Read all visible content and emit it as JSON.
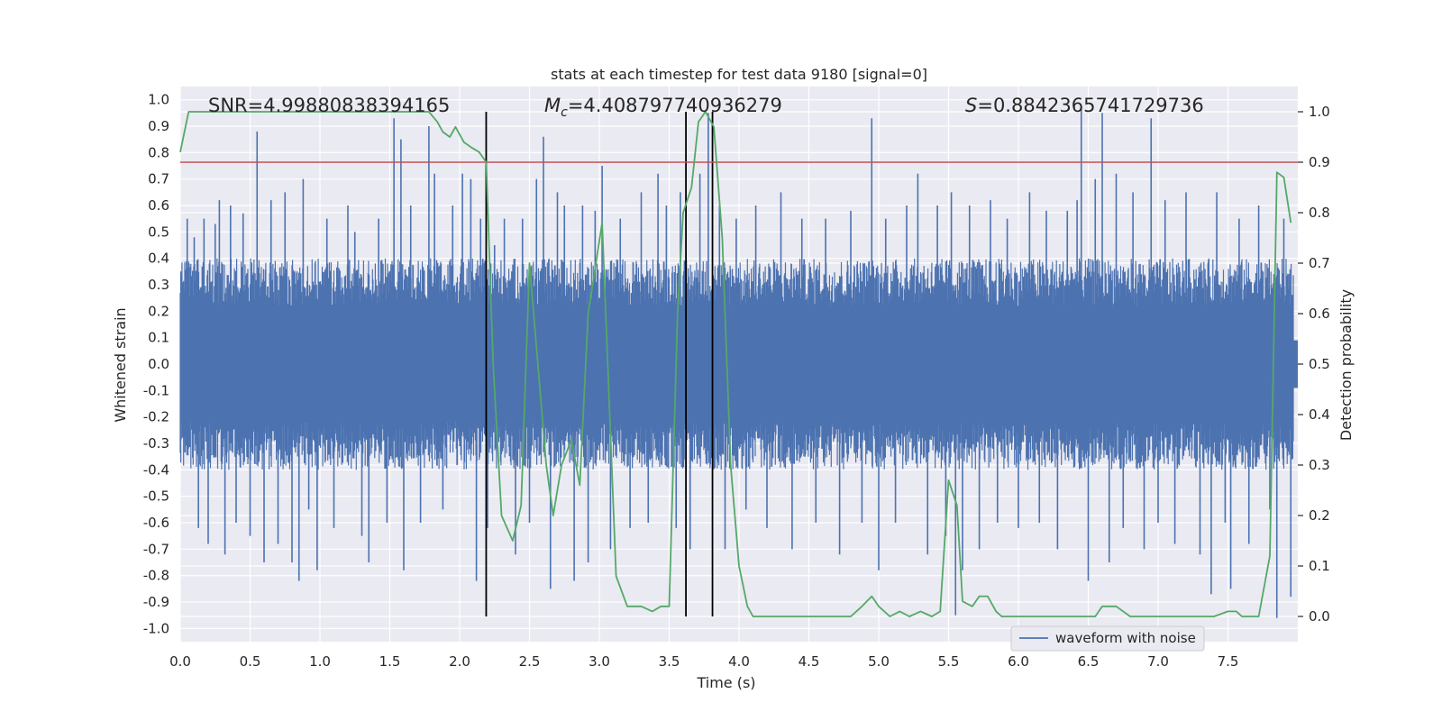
{
  "chart_data": {
    "type": "line",
    "title": "stats at each timestep for test data 9180 [signal=0]",
    "xlabel": "Time (s)",
    "ylabel_left": "Whitened strain",
    "ylabel_right": "Detection probability",
    "xlim": [
      0.0,
      8.0
    ],
    "ylim_left": [
      -1.05,
      1.05
    ],
    "ylim_right": [
      -0.05,
      1.05
    ],
    "x_ticks": [
      0.0,
      0.5,
      1.0,
      1.5,
      2.0,
      2.5,
      3.0,
      3.5,
      4.0,
      4.5,
      5.0,
      5.5,
      6.0,
      6.5,
      7.0,
      7.5
    ],
    "x_tick_labels": [
      "0.0",
      "0.5",
      "1.0",
      "1.5",
      "2.0",
      "2.5",
      "3.0",
      "3.5",
      "4.0",
      "4.5",
      "5.0",
      "5.5",
      "6.0",
      "6.5",
      "7.0",
      "7.5"
    ],
    "y_left_ticks": [
      1.0,
      0.9,
      0.8,
      0.7,
      0.6,
      0.5,
      0.4,
      0.3,
      0.2,
      0.1,
      0.0,
      -0.1,
      -0.2,
      -0.3,
      -0.4,
      -0.5,
      -0.6,
      -0.7,
      -0.8,
      -0.9,
      -1.0
    ],
    "y_left_tick_labels": [
      "1.0",
      "0.9",
      "0.8",
      "0.7",
      "0.6",
      "0.5",
      "0.4",
      "0.3",
      "0.2",
      "0.1",
      "0.0",
      "-0.1",
      "-0.2",
      "-0.3",
      "-0.4",
      "-0.5",
      "-0.6",
      "-0.7",
      "-0.8",
      "-0.9",
      "-1.0"
    ],
    "y_right_ticks": [
      1.0,
      0.9,
      0.8,
      0.7,
      0.6,
      0.5,
      0.4,
      0.3,
      0.2,
      0.1,
      0.0
    ],
    "y_right_tick_labels": [
      "1.0",
      "0.9",
      "0.8",
      "0.7",
      "0.6",
      "0.5",
      "0.4",
      "0.3",
      "0.2",
      "0.1",
      "0.0"
    ],
    "annotations": {
      "snr": "SNR=4.99880838394165",
      "mc_symbol": "M",
      "mc_subscript": "c",
      "mc_value": "=4.408797740936279",
      "s_symbol": "S",
      "s_value": "=0.8842365741729736"
    },
    "threshold": {
      "value": 0.9,
      "axis": "right",
      "color": "#c44e52"
    },
    "vertical_markers": [
      2.19,
      3.62,
      3.81
    ],
    "waveform": {
      "name": "waveform with noise",
      "color": "#4c72b0",
      "envelope_abs": 0.4,
      "spikes": [
        [
          0.05,
          0.55
        ],
        [
          0.1,
          0.48
        ],
        [
          0.13,
          -0.62
        ],
        [
          0.17,
          0.55
        ],
        [
          0.2,
          -0.68
        ],
        [
          0.25,
          0.53
        ],
        [
          0.28,
          0.62
        ],
        [
          0.32,
          -0.72
        ],
        [
          0.36,
          0.6
        ],
        [
          0.4,
          -0.6
        ],
        [
          0.45,
          0.57
        ],
        [
          0.5,
          -0.65
        ],
        [
          0.55,
          0.88
        ],
        [
          0.6,
          -0.75
        ],
        [
          0.65,
          0.62
        ],
        [
          0.7,
          -0.68
        ],
        [
          0.75,
          0.65
        ],
        [
          0.8,
          -0.75
        ],
        [
          0.85,
          -0.82
        ],
        [
          0.88,
          0.7
        ],
        [
          0.92,
          -0.55
        ],
        [
          0.98,
          -0.78
        ],
        [
          1.05,
          0.55
        ],
        [
          1.1,
          -0.62
        ],
        [
          1.2,
          0.6
        ],
        [
          1.25,
          0.5
        ],
        [
          1.3,
          -0.65
        ],
        [
          1.35,
          -0.75
        ],
        [
          1.42,
          0.55
        ],
        [
          1.48,
          -0.6
        ],
        [
          1.53,
          0.93
        ],
        [
          1.58,
          0.85
        ],
        [
          1.6,
          -0.78
        ],
        [
          1.65,
          0.6
        ],
        [
          1.72,
          -0.6
        ],
        [
          1.78,
          0.9
        ],
        [
          1.82,
          0.72
        ],
        [
          1.88,
          -0.55
        ],
        [
          1.95,
          0.6
        ],
        [
          2.02,
          0.72
        ],
        [
          2.08,
          0.7
        ],
        [
          2.12,
          -0.82
        ],
        [
          2.15,
          0.55
        ],
        [
          2.2,
          -0.62
        ],
        [
          2.25,
          0.45
        ],
        [
          2.32,
          0.55
        ],
        [
          2.4,
          -0.72
        ],
        [
          2.45,
          0.55
        ],
        [
          2.5,
          -0.6
        ],
        [
          2.55,
          0.7
        ],
        [
          2.6,
          0.86
        ],
        [
          2.65,
          -0.85
        ],
        [
          2.7,
          0.65
        ],
        [
          2.75,
          0.6
        ],
        [
          2.82,
          -0.82
        ],
        [
          2.88,
          0.6
        ],
        [
          2.92,
          -0.75
        ],
        [
          2.97,
          0.58
        ],
        [
          3.02,
          0.75
        ],
        [
          3.08,
          -0.7
        ],
        [
          3.15,
          0.55
        ],
        [
          3.22,
          -0.62
        ],
        [
          3.3,
          0.65
        ],
        [
          3.35,
          -0.6
        ],
        [
          3.42,
          0.72
        ],
        [
          3.48,
          0.6
        ],
        [
          3.55,
          -0.62
        ],
        [
          3.58,
          0.65
        ],
        [
          3.65,
          -0.7
        ],
        [
          3.72,
          0.72
        ],
        [
          3.78,
          0.95
        ],
        [
          3.86,
          0.6
        ],
        [
          3.9,
          -0.7
        ],
        [
          3.98,
          0.55
        ],
        [
          4.05,
          -0.55
        ],
        [
          4.12,
          0.6
        ],
        [
          4.2,
          -0.62
        ],
        [
          4.3,
          0.65
        ],
        [
          4.38,
          -0.7
        ],
        [
          4.45,
          0.55
        ],
        [
          4.55,
          -0.6
        ],
        [
          4.62,
          0.55
        ],
        [
          4.72,
          -0.72
        ],
        [
          4.8,
          0.58
        ],
        [
          4.88,
          -0.6
        ],
        [
          4.95,
          0.93
        ],
        [
          5.0,
          -0.78
        ],
        [
          5.05,
          0.55
        ],
        [
          5.12,
          -0.6
        ],
        [
          5.2,
          0.6
        ],
        [
          5.28,
          0.72
        ],
        [
          5.35,
          -0.72
        ],
        [
          5.42,
          0.6
        ],
        [
          5.48,
          -0.65
        ],
        [
          5.52,
          0.65
        ],
        [
          5.55,
          -0.95
        ],
        [
          5.6,
          -0.78
        ],
        [
          5.65,
          0.6
        ],
        [
          5.72,
          -0.7
        ],
        [
          5.8,
          0.62
        ],
        [
          5.85,
          -0.6
        ],
        [
          5.92,
          0.55
        ],
        [
          6.0,
          -0.62
        ],
        [
          6.08,
          0.65
        ],
        [
          6.15,
          -0.6
        ],
        [
          6.2,
          0.58
        ],
        [
          6.28,
          -0.7
        ],
        [
          6.35,
          0.58
        ],
        [
          6.42,
          0.62
        ],
        [
          6.45,
          0.97
        ],
        [
          6.5,
          -0.82
        ],
        [
          6.55,
          0.7
        ],
        [
          6.6,
          0.95
        ],
        [
          6.65,
          -0.75
        ],
        [
          6.7,
          0.72
        ],
        [
          6.75,
          -0.62
        ],
        [
          6.82,
          0.65
        ],
        [
          6.9,
          -0.7
        ],
        [
          6.95,
          0.93
        ],
        [
          7.0,
          -0.6
        ],
        [
          7.05,
          0.62
        ],
        [
          7.12,
          -0.68
        ],
        [
          7.2,
          0.65
        ],
        [
          7.3,
          -0.72
        ],
        [
          7.38,
          -0.87
        ],
        [
          7.42,
          0.65
        ],
        [
          7.48,
          -0.6
        ],
        [
          7.52,
          -0.85
        ],
        [
          7.58,
          0.55
        ],
        [
          7.65,
          -0.68
        ],
        [
          7.72,
          0.6
        ],
        [
          7.8,
          -0.55
        ],
        [
          7.85,
          -0.96
        ],
        [
          7.9,
          0.55
        ],
        [
          7.95,
          -0.88
        ]
      ]
    },
    "detection_probability": {
      "name": "Detection probability",
      "color": "#55a868",
      "x": [
        0.0,
        0.06,
        0.5,
        1.0,
        1.5,
        1.78,
        1.84,
        1.88,
        1.93,
        1.97,
        2.03,
        2.08,
        2.14,
        2.19,
        2.24,
        2.3,
        2.38,
        2.44,
        2.5,
        2.56,
        2.62,
        2.67,
        2.73,
        2.8,
        2.86,
        2.92,
        3.02,
        3.12,
        3.2,
        3.3,
        3.38,
        3.44,
        3.5,
        3.56,
        3.6,
        3.66,
        3.71,
        3.76,
        3.82,
        3.88,
        3.94,
        4.0,
        4.06,
        4.1,
        4.2,
        4.5,
        4.7,
        4.8,
        4.88,
        4.95,
        5.0,
        5.08,
        5.15,
        5.22,
        5.3,
        5.38,
        5.44,
        5.5,
        5.56,
        5.6,
        5.67,
        5.72,
        5.78,
        5.84,
        5.88,
        6.0,
        6.2,
        6.4,
        6.5,
        6.55,
        6.6,
        6.7,
        6.8,
        7.0,
        7.2,
        7.4,
        7.5,
        7.56,
        7.6,
        7.66,
        7.72,
        7.8,
        7.85,
        7.9,
        7.95
      ],
      "y": [
        0.92,
        1.0,
        1.0,
        1.0,
        1.0,
        1.0,
        0.98,
        0.96,
        0.95,
        0.97,
        0.94,
        0.93,
        0.92,
        0.9,
        0.5,
        0.2,
        0.15,
        0.22,
        0.7,
        0.5,
        0.3,
        0.2,
        0.3,
        0.35,
        0.26,
        0.6,
        0.78,
        0.08,
        0.02,
        0.02,
        0.01,
        0.02,
        0.02,
        0.6,
        0.8,
        0.85,
        0.98,
        1.0,
        0.97,
        0.75,
        0.3,
        0.1,
        0.02,
        0.0,
        0.0,
        0.0,
        0.0,
        0.0,
        0.02,
        0.04,
        0.02,
        0.0,
        0.01,
        0.0,
        0.01,
        0.0,
        0.01,
        0.27,
        0.22,
        0.03,
        0.02,
        0.04,
        0.04,
        0.01,
        0.0,
        0.0,
        0.0,
        0.0,
        0.0,
        0.0,
        0.02,
        0.02,
        0.0,
        0.0,
        0.0,
        0.0,
        0.01,
        0.01,
        0.0,
        0.0,
        0.0,
        0.12,
        0.88,
        0.87,
        0.78
      ]
    },
    "legend": {
      "label": "waveform with noise",
      "location": "lower-right"
    }
  }
}
